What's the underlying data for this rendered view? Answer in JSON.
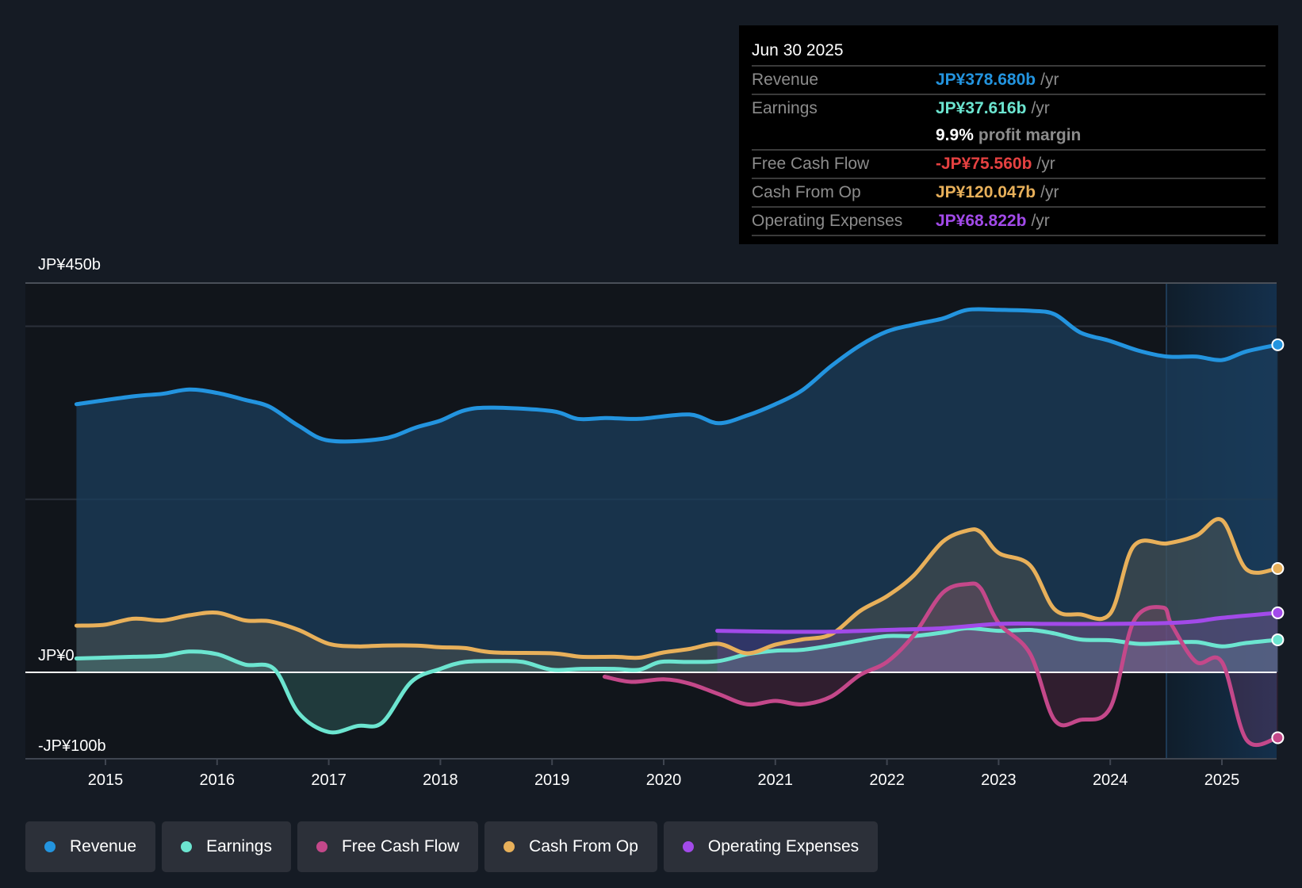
{
  "tooltip": {
    "date": "Jun 30 2025",
    "rows": [
      {
        "label": "Revenue",
        "value": "JP¥378.680b",
        "unit": "/yr",
        "color": "#2394df"
      },
      {
        "label": "Earnings",
        "value": "JP¥37.616b",
        "unit": "/yr",
        "color": "#6ce5d0"
      },
      {
        "label": "",
        "value": "9.9%",
        "unit": "profit margin",
        "color": "#ffffff"
      },
      {
        "label": "Free Cash Flow",
        "value": "-JP¥75.560b",
        "unit": "/yr",
        "color": "#e64141"
      },
      {
        "label": "Cash From Op",
        "value": "JP¥120.047b",
        "unit": "/yr",
        "color": "#e8b05a"
      },
      {
        "label": "Operating Expenses",
        "value": "JP¥68.822b",
        "unit": "/yr",
        "color": "#a24ae9"
      }
    ]
  },
  "legend": [
    {
      "label": "Revenue",
      "color": "#2394df"
    },
    {
      "label": "Earnings",
      "color": "#6ce5d0"
    },
    {
      "label": "Free Cash Flow",
      "color": "#c4488a"
    },
    {
      "label": "Cash From Op",
      "color": "#e8b05a"
    },
    {
      "label": "Operating Expenses",
      "color": "#a24ae9"
    }
  ],
  "chart_data": {
    "type": "area",
    "title": "",
    "xlabel": "",
    "ylabel": "",
    "ylim": [
      -100,
      450
    ],
    "y_unit": "JP¥ billions",
    "y_tick_labels": [
      {
        "value": 450,
        "label": "JP¥450b"
      },
      {
        "value": 0,
        "label": "JP¥0"
      },
      {
        "value": -100,
        "label": "-JP¥100b"
      }
    ],
    "gridlines": [
      450,
      400,
      200
    ],
    "x_ticks": [
      2015,
      2016,
      2017,
      2018,
      2019,
      2020,
      2021,
      2022,
      2023,
      2024,
      2025
    ],
    "xlim": [
      2014.2,
      2025.5
    ],
    "highlight_start": 2025.0,
    "grid": true,
    "legend_position": "bottom-left",
    "series": [
      {
        "name": "Revenue",
        "color": "#2394df",
        "points": [
          [
            2014.74,
            310
          ],
          [
            2015.25,
            319
          ],
          [
            2015.51,
            322
          ],
          [
            2015.75,
            327
          ],
          [
            2016.0,
            323
          ],
          [
            2016.25,
            315
          ],
          [
            2016.47,
            307
          ],
          [
            2016.73,
            285
          ],
          [
            2017.0,
            268
          ],
          [
            2017.48,
            270
          ],
          [
            2017.78,
            283
          ],
          [
            2018.0,
            291
          ],
          [
            2018.22,
            303
          ],
          [
            2018.48,
            306
          ],
          [
            2019.0,
            302
          ],
          [
            2019.23,
            293
          ],
          [
            2019.49,
            294
          ],
          [
            2019.78,
            293
          ],
          [
            2020.23,
            298
          ],
          [
            2020.49,
            288
          ],
          [
            2020.75,
            297
          ],
          [
            2021.0,
            310
          ],
          [
            2021.24,
            326
          ],
          [
            2021.5,
            354
          ],
          [
            2021.76,
            378
          ],
          [
            2022.0,
            394
          ],
          [
            2022.24,
            402
          ],
          [
            2022.5,
            409
          ],
          [
            2022.72,
            419
          ],
          [
            2023.0,
            419
          ],
          [
            2023.28,
            418
          ],
          [
            2023.5,
            414
          ],
          [
            2023.73,
            393
          ],
          [
            2024.0,
            383
          ],
          [
            2024.25,
            372
          ],
          [
            2024.51,
            365
          ],
          [
            2024.77,
            365
          ],
          [
            2025.0,
            361
          ],
          [
            2025.22,
            371
          ],
          [
            2025.5,
            378.68
          ]
        ]
      },
      {
        "name": "Earnings",
        "color": "#6ce5d0",
        "points": [
          [
            2014.74,
            16
          ],
          [
            2015.25,
            18
          ],
          [
            2015.51,
            19
          ],
          [
            2015.75,
            24
          ],
          [
            2016.0,
            21
          ],
          [
            2016.25,
            9
          ],
          [
            2016.51,
            4
          ],
          [
            2016.73,
            -47
          ],
          [
            2017.0,
            -69
          ],
          [
            2017.26,
            -62
          ],
          [
            2017.48,
            -58
          ],
          [
            2017.74,
            -11
          ],
          [
            2018.0,
            4
          ],
          [
            2018.22,
            12
          ],
          [
            2018.52,
            13
          ],
          [
            2018.74,
            12
          ],
          [
            2019.0,
            3
          ],
          [
            2019.26,
            4
          ],
          [
            2019.56,
            4
          ],
          [
            2019.78,
            3
          ],
          [
            2019.97,
            12
          ],
          [
            2020.23,
            12
          ],
          [
            2020.49,
            13
          ],
          [
            2020.75,
            21
          ],
          [
            2021.0,
            25
          ],
          [
            2021.24,
            26
          ],
          [
            2021.5,
            31
          ],
          [
            2021.76,
            37
          ],
          [
            2022.0,
            42
          ],
          [
            2022.24,
            42
          ],
          [
            2022.5,
            46
          ],
          [
            2022.72,
            51
          ],
          [
            2023.0,
            48
          ],
          [
            2023.28,
            49
          ],
          [
            2023.5,
            45
          ],
          [
            2023.73,
            38
          ],
          [
            2024.0,
            37
          ],
          [
            2024.25,
            33
          ],
          [
            2024.51,
            34
          ],
          [
            2024.77,
            35
          ],
          [
            2025.0,
            30
          ],
          [
            2025.22,
            34
          ],
          [
            2025.5,
            37.616
          ]
        ]
      },
      {
        "name": "Free Cash Flow",
        "color": "#c4488a",
        "points": [
          [
            2019.47,
            -5
          ],
          [
            2019.71,
            -11
          ],
          [
            2020.0,
            -8
          ],
          [
            2020.23,
            -13
          ],
          [
            2020.49,
            -25
          ],
          [
            2020.75,
            -37
          ],
          [
            2021.0,
            -33
          ],
          [
            2021.24,
            -37
          ],
          [
            2021.5,
            -28
          ],
          [
            2021.76,
            -3
          ],
          [
            2022.0,
            12
          ],
          [
            2022.24,
            43
          ],
          [
            2022.5,
            92
          ],
          [
            2022.72,
            102
          ],
          [
            2022.84,
            97
          ],
          [
            2023.0,
            57
          ],
          [
            2023.28,
            22
          ],
          [
            2023.5,
            -55
          ],
          [
            2023.73,
            -55
          ],
          [
            2024.0,
            -41
          ],
          [
            2024.21,
            59
          ],
          [
            2024.47,
            75
          ],
          [
            2024.55,
            55
          ],
          [
            2024.77,
            12
          ],
          [
            2025.0,
            12
          ],
          [
            2025.22,
            -78
          ],
          [
            2025.5,
            -75.56
          ]
        ]
      },
      {
        "name": "Cash From Op",
        "color": "#e8b05a",
        "points": [
          [
            2014.74,
            54
          ],
          [
            2014.99,
            55
          ],
          [
            2015.25,
            62
          ],
          [
            2015.51,
            60
          ],
          [
            2015.75,
            66
          ],
          [
            2016.0,
            69
          ],
          [
            2016.25,
            60
          ],
          [
            2016.47,
            59
          ],
          [
            2016.73,
            49
          ],
          [
            2017.0,
            33
          ],
          [
            2017.26,
            30
          ],
          [
            2017.48,
            31
          ],
          [
            2017.78,
            31
          ],
          [
            2018.0,
            29
          ],
          [
            2018.22,
            28
          ],
          [
            2018.48,
            23
          ],
          [
            2019.0,
            22
          ],
          [
            2019.26,
            18
          ],
          [
            2019.56,
            18
          ],
          [
            2019.78,
            17
          ],
          [
            2020.0,
            23
          ],
          [
            2020.23,
            27
          ],
          [
            2020.49,
            33
          ],
          [
            2020.75,
            22
          ],
          [
            2021.0,
            32
          ],
          [
            2021.24,
            38
          ],
          [
            2021.5,
            44
          ],
          [
            2021.76,
            71
          ],
          [
            2022.0,
            88
          ],
          [
            2022.24,
            112
          ],
          [
            2022.5,
            151
          ],
          [
            2022.72,
            164
          ],
          [
            2022.84,
            162
          ],
          [
            2023.0,
            138
          ],
          [
            2023.28,
            124
          ],
          [
            2023.5,
            73
          ],
          [
            2023.73,
            67
          ],
          [
            2024.0,
            68
          ],
          [
            2024.21,
            146
          ],
          [
            2024.51,
            149
          ],
          [
            2024.77,
            158
          ],
          [
            2025.0,
            176
          ],
          [
            2025.22,
            119
          ],
          [
            2025.5,
            120.047
          ]
        ]
      },
      {
        "name": "Operating Expenses",
        "color": "#a24ae9",
        "points": [
          [
            2020.48,
            48
          ],
          [
            2021.0,
            47
          ],
          [
            2021.5,
            47
          ],
          [
            2022.0,
            49
          ],
          [
            2022.5,
            51
          ],
          [
            2023.0,
            56
          ],
          [
            2023.5,
            56
          ],
          [
            2024.0,
            56
          ],
          [
            2024.51,
            57
          ],
          [
            2024.77,
            59
          ],
          [
            2025.0,
            63
          ],
          [
            2025.5,
            68.822
          ]
        ]
      }
    ]
  }
}
